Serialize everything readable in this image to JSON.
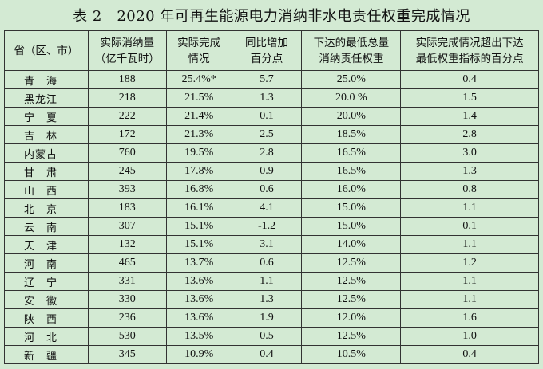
{
  "title": "表 2　2020 年可再生能源电力消纳非水电责任权重完成情况",
  "headers": [
    [
      "省（区、市）"
    ],
    [
      "实际消纳量",
      "（亿千瓦时）"
    ],
    [
      "实际完成",
      "情况"
    ],
    [
      "同比增加",
      "百分点"
    ],
    [
      "下达的最低总量",
      "消纳责任权重"
    ],
    [
      "实际完成情况超出下达",
      "最低权重指标的百分点"
    ]
  ],
  "rows": [
    [
      "青　海",
      "188",
      "25.4%*",
      "5.7",
      "25.0%",
      "0.4"
    ],
    [
      "黑龙江",
      "218",
      "21.5%",
      "1.3",
      "20.0 %",
      "1.5"
    ],
    [
      "宁　夏",
      "222",
      "21.4%",
      "0.1",
      "20.0%",
      "1.4"
    ],
    [
      "吉　林",
      "172",
      "21.3%",
      "2.5",
      "18.5%",
      "2.8"
    ],
    [
      "内蒙古",
      "760",
      "19.5%",
      "2.8",
      "16.5%",
      "3.0"
    ],
    [
      "甘　肃",
      "245",
      "17.8%",
      "0.9",
      "16.5%",
      "1.3"
    ],
    [
      "山　西",
      "393",
      "16.8%",
      "0.6",
      "16.0%",
      "0.8"
    ],
    [
      "北　京",
      "183",
      "16.1%",
      "4.1",
      "15.0%",
      "1.1"
    ],
    [
      "云　南",
      "307",
      "15.1%",
      "-1.2",
      "15.0%",
      "0.1"
    ],
    [
      "天　津",
      "132",
      "15.1%",
      "3.1",
      "14.0%",
      "1.1"
    ],
    [
      "河　南",
      "465",
      "13.7%",
      "0.6",
      "12.5%",
      "1.2"
    ],
    [
      "辽　宁",
      "331",
      "13.6%",
      "1.1",
      "12.5%",
      "1.1"
    ],
    [
      "安　徽",
      "330",
      "13.6%",
      "1.3",
      "12.5%",
      "1.1"
    ],
    [
      "陕　西",
      "236",
      "13.6%",
      "1.9",
      "12.0%",
      "1.6"
    ],
    [
      "河　北",
      "530",
      "13.5%",
      "0.5",
      "12.5%",
      "1.0"
    ],
    [
      "新　疆",
      "345",
      "10.9%",
      "0.4",
      "10.5%",
      "0.4"
    ]
  ]
}
